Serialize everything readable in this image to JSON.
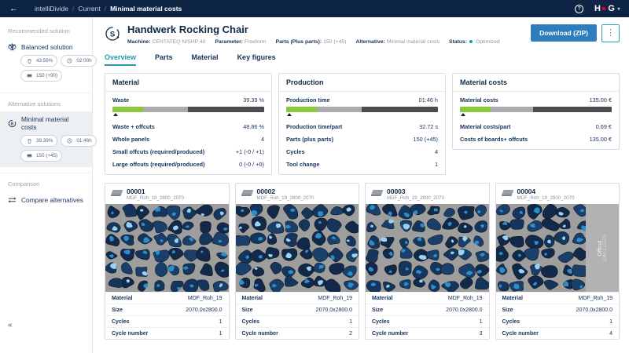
{
  "topbar": {
    "back": "←",
    "separator": "/",
    "breadcrumb": [
      {
        "label": "intelliDivide",
        "bold": false
      },
      {
        "label": "Current",
        "bold": false
      },
      {
        "label": "Minimal material costs",
        "bold": true
      }
    ],
    "help": "?",
    "logo": {
      "left": "H",
      "right": "G",
      "caret": "▾"
    }
  },
  "sidebar": {
    "collapse": "«",
    "sections": [
      {
        "title": "Recommended solution",
        "items": [
          {
            "icon": "balance-icon",
            "label": "Balanced solution",
            "selected": false,
            "chip_rows": [
              [
                {
                  "icon": "waste-icon",
                  "text": "43.56%"
                },
                {
                  "icon": "clock-icon",
                  "text": "02:00h"
                }
              ],
              [
                {
                  "icon": "panel-icon",
                  "text": "150 (+90)"
                }
              ]
            ]
          }
        ]
      },
      {
        "title": "Alternative solutions",
        "items": [
          {
            "icon": "cost-cycle-icon",
            "label": "Minimal material costs",
            "selected": true,
            "chip_rows": [
              [
                {
                  "icon": "waste-icon",
                  "text": "39.39%"
                },
                {
                  "icon": "clock-icon",
                  "text": "01:46h"
                }
              ],
              [
                {
                  "icon": "panel-icon",
                  "text": "150 (+45)"
                }
              ]
            ]
          }
        ]
      },
      {
        "title": "Comparison",
        "items": [
          {
            "icon": "compare-icon",
            "label": "Compare alternatives",
            "selected": false,
            "chip_rows": []
          }
        ]
      }
    ]
  },
  "header": {
    "title": "Handwerk Rocking Chair",
    "meta": [
      {
        "label": "Machine:",
        "value": "CENTATEQ N/SHP 40",
        "dot": false
      },
      {
        "label": "Parameter:",
        "value": "Freeform",
        "dot": false
      },
      {
        "label": "Parts (Plus parts):",
        "value": "150 (+45)",
        "dot": false
      },
      {
        "label": "Alternative:",
        "value": "Minimal material costs",
        "dot": false
      },
      {
        "label": "Status:",
        "value": "Optimized",
        "dot": true
      }
    ],
    "download_label": "Download (ZIP)",
    "kebab": "⋮"
  },
  "tabs": [
    {
      "label": "Overview",
      "active": true
    },
    {
      "label": "Parts",
      "active": false
    },
    {
      "label": "Material",
      "active": false
    },
    {
      "label": "Key figures",
      "active": false
    }
  ],
  "summary_cards": [
    {
      "title": "Material",
      "primary": {
        "label": "Waste",
        "value": "39.39 %"
      },
      "bar": {
        "segments": [
          20,
          30,
          50
        ],
        "marker_pct": 0.5
      },
      "rows": [
        {
          "label": "Waste + offcuts",
          "value": "48.86 %"
        },
        {
          "label": "Whole panels",
          "value": "4"
        },
        {
          "label": "Small offcuts (required/produced)",
          "value": "+1 (-0 / +1)"
        },
        {
          "label": "Large offcuts (required/produced)",
          "value": "0 (-0 / +0)"
        }
      ]
    },
    {
      "title": "Production",
      "primary": {
        "label": "Production time",
        "value": "01:46 h"
      },
      "bar": {
        "segments": [
          20,
          30,
          50
        ],
        "marker_pct": 0.5
      },
      "rows": [
        {
          "label": "Production time/part",
          "value": "32.72 s"
        },
        {
          "label": "Parts (plus parts)",
          "value": "150 (+45)"
        },
        {
          "label": "Cycles",
          "value": "4"
        },
        {
          "label": "Tool change",
          "value": "1"
        }
      ]
    },
    {
      "title": "Material costs",
      "primary": {
        "label": "Material costs",
        "value": "135.00 €"
      },
      "bar": {
        "segments": [
          20,
          28,
          52
        ],
        "marker_pct": 0.5
      },
      "rows": [
        {
          "label": "Material costs/part",
          "value": "0.69 €"
        },
        {
          "label": "Costs of boards+ offcuts",
          "value": "135.00 €"
        }
      ]
    }
  ],
  "boards": [
    {
      "id": "00001",
      "subtitle": "MDF_Roh_19_2800_2070",
      "seed": 11,
      "offcut": null,
      "rows": [
        {
          "label": "Material",
          "value": "MDF_Roh_19"
        },
        {
          "label": "Size",
          "value": "2070.0x2800.0"
        },
        {
          "label": "Cycles",
          "value": "1"
        },
        {
          "label": "Cycle number",
          "value": "1"
        }
      ]
    },
    {
      "id": "00002",
      "subtitle": "MDF_Roh_19_2800_2070",
      "seed": 22,
      "offcut": null,
      "rows": [
        {
          "label": "Material",
          "value": "MDF_Roh_19"
        },
        {
          "label": "Size",
          "value": "2070.0x2800.0"
        },
        {
          "label": "Cycles",
          "value": "1"
        },
        {
          "label": "Cycle number",
          "value": "2"
        }
      ]
    },
    {
      "id": "00003",
      "subtitle": "MDF_Roh_19_2800_2070",
      "seed": 33,
      "offcut": null,
      "rows": [
        {
          "label": "Material",
          "value": "MDF_Roh_19"
        },
        {
          "label": "Size",
          "value": "2070.0x2800.0"
        },
        {
          "label": "Cycles",
          "value": "1"
        },
        {
          "label": "Cycle number",
          "value": "3"
        }
      ]
    },
    {
      "id": "00004",
      "subtitle": "MDF_Roh_19_2800_2070",
      "seed": 44,
      "offcut": {
        "label": "Offcut",
        "size": "1060.1x2070",
        "fraction": 0.27
      },
      "rows": [
        {
          "label": "Material",
          "value": "MDF_Roh_19"
        },
        {
          "label": "Size",
          "value": "2070.0x2800.0"
        },
        {
          "label": "Cycles",
          "value": "1"
        },
        {
          "label": "Cycle number",
          "value": "4"
        }
      ]
    }
  ],
  "colors": {
    "topbar_bg": "#0e2444",
    "accent_teal": "#2798ad",
    "status_teal": "#00a7b5",
    "button_blue": "#2e7dbd",
    "logo_red": "#e2001a",
    "bar_green": "#8dc63f",
    "bar_light_gray": "#a9abad",
    "bar_dark_gray": "#4a4c4e",
    "board_gray": "#9e9e9e",
    "part_navy": "#16355c",
    "part_blue": "#2b8fce",
    "part_light_blue": "#9ad2ef"
  }
}
